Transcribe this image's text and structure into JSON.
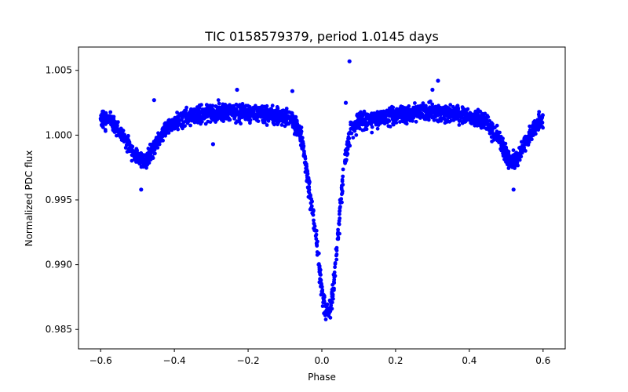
{
  "chart_data": {
    "type": "scatter",
    "title": "TIC 0158579379, period 1.0145 days",
    "xlabel": "Phase",
    "ylabel": "Normalized PDC flux",
    "xlim": [
      -0.66,
      0.66
    ],
    "ylim": [
      0.9835,
      1.0068
    ],
    "xticks": [
      -0.6,
      -0.4,
      -0.2,
      0.0,
      0.2,
      0.4,
      0.6
    ],
    "xtick_labels": [
      "−0.6",
      "−0.4",
      "−0.2",
      "0.0",
      "0.2",
      "0.4",
      "0.6"
    ],
    "yticks": [
      0.985,
      0.99,
      0.995,
      1.0,
      1.005
    ],
    "ytick_labels": [
      "0.985",
      "0.990",
      "0.995",
      "1.000",
      "1.005"
    ],
    "grid": false,
    "legend": "none",
    "marker_color": "#0000ff",
    "series": [
      {
        "x": [
          -0.6,
          -0.58,
          -0.56,
          -0.54,
          -0.52,
          -0.5,
          -0.49,
          -0.48,
          -0.47,
          -0.46,
          -0.44,
          -0.42,
          -0.4,
          -0.35,
          -0.3,
          -0.25,
          -0.2,
          -0.15,
          -0.1,
          -0.08,
          -0.06,
          -0.05,
          -0.04,
          -0.03,
          -0.02,
          -0.01,
          0.0,
          0.01,
          0.02,
          0.03,
          0.04,
          0.05,
          0.06,
          0.07,
          0.08,
          0.1,
          0.15,
          0.2,
          0.25,
          0.3,
          0.35,
          0.4,
          0.44,
          0.46,
          0.48,
          0.5,
          0.51,
          0.52,
          0.53,
          0.54,
          0.56,
          0.58,
          0.6
        ],
        "y": [
          1.0013,
          1.0012,
          1.0008,
          1.0,
          0.999,
          0.9983,
          0.998,
          0.998,
          0.9984,
          0.999,
          0.9998,
          1.0006,
          1.001,
          1.0015,
          1.0018,
          1.0018,
          1.0017,
          1.0016,
          1.0014,
          1.0012,
          1.0003,
          0.999,
          0.997,
          0.995,
          0.993,
          0.9905,
          0.988,
          0.9865,
          0.9862,
          0.988,
          0.991,
          0.9945,
          0.9975,
          0.9993,
          1.0003,
          1.001,
          1.0013,
          1.0015,
          1.0017,
          1.0018,
          1.0017,
          1.0015,
          1.0012,
          1.0005,
          0.9997,
          0.9985,
          0.998,
          0.998,
          0.9982,
          0.9988,
          0.9998,
          1.0008,
          1.0013
        ],
        "scatter_width": 0.0009
      }
    ],
    "outliers": [
      {
        "x": 0.075,
        "y": 1.0057
      },
      {
        "x": 0.315,
        "y": 1.0042
      },
      {
        "x": 0.065,
        "y": 1.0025
      },
      {
        "x": -0.455,
        "y": 1.0027
      },
      {
        "x": -0.08,
        "y": 1.0034
      },
      {
        "x": -0.295,
        "y": 0.9993
      },
      {
        "x": -0.49,
        "y": 0.9958
      },
      {
        "x": 0.52,
        "y": 0.9958
      },
      {
        "x": 0.3,
        "y": 1.0035
      },
      {
        "x": -0.23,
        "y": 1.0035
      }
    ]
  }
}
